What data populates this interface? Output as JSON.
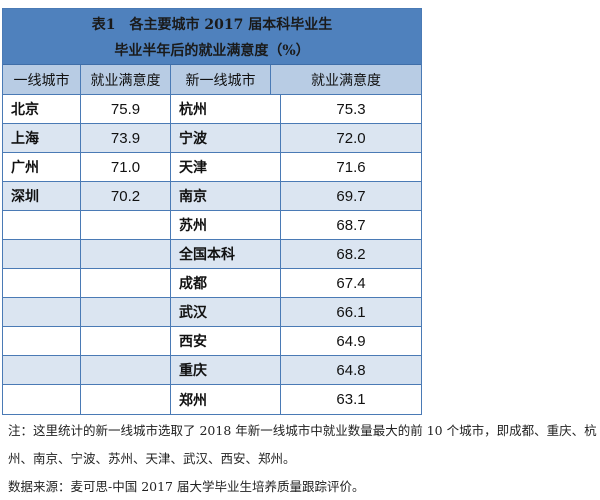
{
  "title": {
    "line1": "表1　各主要城市 2017 届本科毕业生",
    "line2": "毕业半年后的就业满意度（%）"
  },
  "headers": [
    "一线城市",
    "就业满意度",
    "新一线城市",
    "就业满意度"
  ],
  "rows": [
    {
      "city1": "北京",
      "val1": "75.9",
      "city2": "杭州",
      "val2": "75.3"
    },
    {
      "city1": "上海",
      "val1": "73.9",
      "city2": "宁波",
      "val2": "72.0"
    },
    {
      "city1": "广州",
      "val1": "71.0",
      "city2": "天津",
      "val2": "71.6"
    },
    {
      "city1": "深圳",
      "val1": "70.2",
      "city2": "南京",
      "val2": "69.7"
    },
    {
      "city1": "",
      "val1": "",
      "city2": "苏州",
      "val2": "68.7"
    },
    {
      "city1": "",
      "val1": "",
      "city2": "全国本科",
      "val2": "68.2"
    },
    {
      "city1": "",
      "val1": "",
      "city2": "成都",
      "val2": "67.4"
    },
    {
      "city1": "",
      "val1": "",
      "city2": "武汉",
      "val2": "66.1"
    },
    {
      "city1": "",
      "val1": "",
      "city2": "西安",
      "val2": "64.9"
    },
    {
      "city1": "",
      "val1": "",
      "city2": "重庆",
      "val2": "64.8"
    },
    {
      "city1": "",
      "val1": "",
      "city2": "郑州",
      "val2": "63.1"
    }
  ],
  "note": {
    "line1": "注：这里统计的新一线城市选取了 2018 年新一线城市中就业数量最大的前 10 个城市，即成都、重庆、杭",
    "line2": "州、南京、宁波、苏州、天津、武汉、西安、郑州。"
  },
  "source": "数据来源：麦可思-中国 2017 届大学毕业生培养质量跟踪评价。",
  "colors": {
    "title_bg": "#4f81bd",
    "header_bg": "#b8cce4",
    "alt_row_bg": "#dbe5f1",
    "border": "#4a7ab5"
  }
}
